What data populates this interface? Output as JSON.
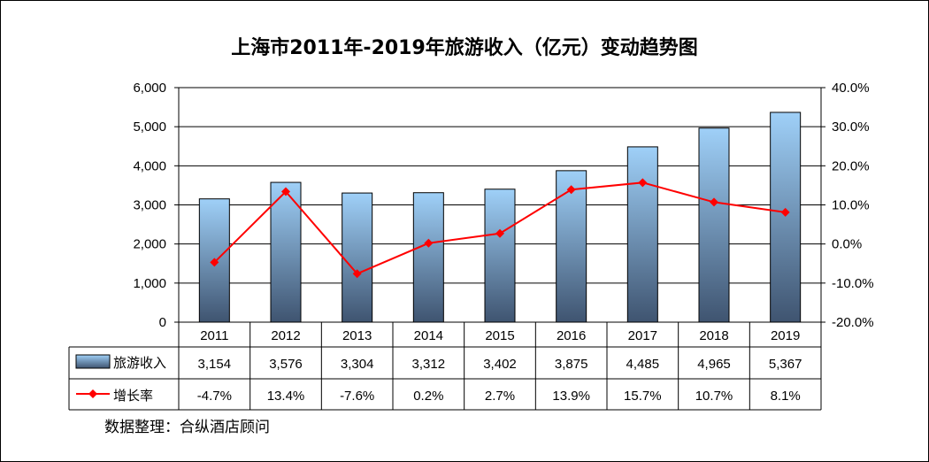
{
  "chart_data": {
    "type": "bar",
    "title": "上海市2011年-2019年旅游收入（亿元）变动趋势图",
    "categories": [
      "2011",
      "2012",
      "2013",
      "2014",
      "2015",
      "2016",
      "2017",
      "2018",
      "2019"
    ],
    "series": [
      {
        "name": "旅游收入",
        "axis": "left",
        "kind": "bar",
        "values": [
          3154,
          3576,
          3304,
          3312,
          3402,
          3875,
          4485,
          4965,
          5367
        ],
        "labels": [
          "3,154",
          "3,576",
          "3,304",
          "3,312",
          "3,402",
          "3,875",
          "4,485",
          "4,965",
          "5,367"
        ]
      },
      {
        "name": "增长率",
        "axis": "right",
        "kind": "line",
        "values": [
          -4.7,
          13.4,
          -7.6,
          0.2,
          2.7,
          13.9,
          15.7,
          10.7,
          8.1
        ],
        "labels": [
          "-4.7%",
          "13.4%",
          "-7.6%",
          "0.2%",
          "2.7%",
          "13.9%",
          "15.7%",
          "10.7%",
          "8.1%"
        ]
      }
    ],
    "ylim_left": [
      0,
      6000
    ],
    "yticks_left": [
      "6,000",
      "5,000",
      "4,000",
      "3,000",
      "2,000",
      "1,000",
      "0"
    ],
    "ylim_right": [
      -20,
      40
    ],
    "yticks_right": [
      "40.0%",
      "30.0%",
      "20.0%",
      "10.0%",
      "0.0%",
      "-10.0%",
      "-20.0%"
    ],
    "grid": true,
    "legend": "data-table",
    "colors": {
      "bar_top": "#9fd0f8",
      "bar_bottom": "#3f5470",
      "line": "#ff0000"
    }
  },
  "source": "数据整理：合纵酒店顾问"
}
